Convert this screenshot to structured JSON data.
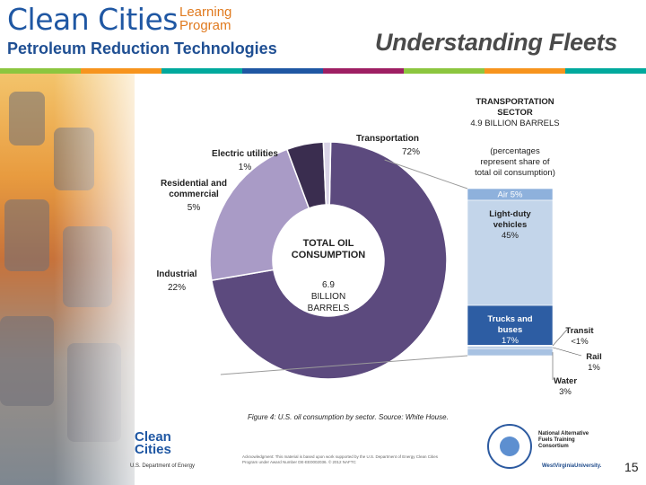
{
  "header": {
    "brand": "Clean Cities",
    "brand_sub_line1": "Learning",
    "brand_sub_line2": "Program",
    "tagline": "Petroleum Reduction Technologies",
    "slide_title": "Understanding Fleets"
  },
  "stripe_colors": [
    "#8cc63f",
    "#f7941d",
    "#00a99d",
    "#1f57a3",
    "#9e1f63",
    "#8cc63f",
    "#f7941d",
    "#00a99d"
  ],
  "chart_data": {
    "type": "pie",
    "center_title": "TOTAL OIL CONSUMPTION",
    "center_value": "6.9 BILLION BARRELS",
    "slices": [
      {
        "label": "Transportation",
        "pct_text": "72%",
        "value": 72,
        "color": "#5c4a7e"
      },
      {
        "label": "Industrial",
        "pct_text": "22%",
        "value": 22,
        "color": "#a99bc6"
      },
      {
        "label": "Residential and commercial",
        "pct_text": "5%",
        "value": 5,
        "color": "#3a2d4f"
      },
      {
        "label": "Electric utilities",
        "pct_text": "1%",
        "value": 1,
        "color": "#d9d3e6"
      }
    ],
    "sector_bar": {
      "title": "TRANSPORTATION SECTOR",
      "subtitle": "4.9 BILLION BARRELS",
      "note": "(percentages represent share of total oil consumption)",
      "segments": [
        {
          "label": "Air",
          "pct_text": "5%",
          "value": 5,
          "color": "#8eb1dc",
          "text_color": "#ffffff"
        },
        {
          "label": "Light-duty vehicles",
          "pct_text": "45%",
          "value": 45,
          "color": "#c3d5ea",
          "text_color": "#222222"
        },
        {
          "label": "Trucks and buses",
          "pct_text": "17%",
          "value": 17,
          "color": "#2d5da3",
          "text_color": "#ffffff"
        },
        {
          "label": "Transit",
          "pct_text": "<1%",
          "value": 0.5,
          "color": "#dbe6f2",
          "text_color": "#222222"
        },
        {
          "label": "Rail",
          "pct_text": "1%",
          "value": 1,
          "color": "#b9cde6",
          "text_color": "#222222"
        },
        {
          "label": "Water",
          "pct_text": "3%",
          "value": 3,
          "color": "#a8c2e2",
          "text_color": "#222222"
        }
      ]
    }
  },
  "caption": "Figure 4: U.S. oil consumption by sector. Source: White House.",
  "footer": {
    "logo_line1": "Clean",
    "logo_line2": "Cities",
    "logo_org": "U.S. Department of Energy",
    "acknowledgment": "Acknowledgment: This material is based upon work supported by the U.S. Department of Energy Clean Cities Program under Award Number DE-EE0002036. © 2012 NAFTC",
    "consortium": "National Alternative Fuels Training Consortium",
    "consortium_sub": "A Program of",
    "university": "WestVirginiaUniversity.",
    "page_number": "15"
  }
}
